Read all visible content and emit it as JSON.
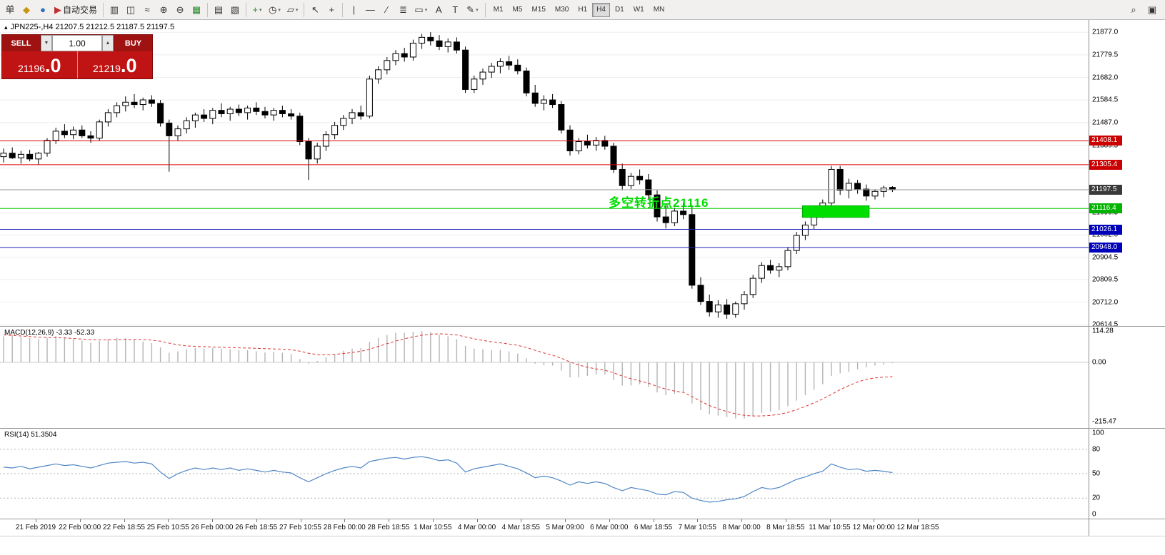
{
  "icons": {
    "symbol_arrow": "▴",
    "down_arrow": "▼",
    "up_arrow": "▲",
    "dropdown_arrow": "▾"
  },
  "toolbar": {
    "groups": [
      {
        "items": [
          {
            "name": "new-order-button",
            "glyph": "单"
          },
          {
            "name": "market-watch-icon-button",
            "glyph": "◆",
            "cls": "gold"
          },
          {
            "name": "community-icon-button",
            "glyph": "●",
            "cls": "blue"
          },
          {
            "name": "autotrade-button",
            "glyph": "▶",
            "cls": "red",
            "label": "自动交易"
          }
        ]
      },
      {
        "items": [
          {
            "name": "bar-chart-button",
            "glyph": "▥"
          },
          {
            "name": "candlestick-chart-button",
            "glyph": "◫"
          },
          {
            "name": "line-chart-button",
            "glyph": "≈"
          },
          {
            "name": "zoom-in-button",
            "glyph": "⊕"
          },
          {
            "name": "zoom-out-button",
            "glyph": "⊖"
          },
          {
            "name": "grid-button",
            "glyph": "▦",
            "cls": "green"
          }
        ]
      },
      {
        "items": [
          {
            "name": "tile-windows-button",
            "glyph": "▤"
          },
          {
            "name": "arrange-windows-button",
            "glyph": "▧"
          }
        ]
      },
      {
        "items": [
          {
            "name": "indicators-button",
            "glyph": "+",
            "cls": "green",
            "dropdown": true
          },
          {
            "name": "periods-button",
            "glyph": "◷",
            "dropdown": true
          },
          {
            "name": "templates-button",
            "glyph": "▱",
            "dropdown": true
          }
        ]
      },
      {
        "items": [
          {
            "name": "cursor-button",
            "glyph": "↖"
          },
          {
            "name": "crosshair-button",
            "glyph": "+"
          }
        ]
      },
      {
        "items": [
          {
            "name": "vertical-line-button",
            "glyph": "|"
          },
          {
            "name": "horizontal-line-button",
            "glyph": "—"
          },
          {
            "name": "trendline-button",
            "glyph": "∕"
          },
          {
            "name": "fibonacci-button",
            "glyph": "≣"
          },
          {
            "name": "shapes-button",
            "glyph": "▭",
            "dropdown": true
          },
          {
            "name": "text-button",
            "glyph": "A"
          },
          {
            "name": "label-button",
            "glyph": "T"
          },
          {
            "name": "arrows-button",
            "glyph": "✎",
            "dropdown": true
          }
        ]
      }
    ],
    "timeframes": [
      "M1",
      "M5",
      "M15",
      "M30",
      "H1",
      "H4",
      "D1",
      "W1",
      "MN"
    ],
    "active_timeframe": "H4",
    "right_items": [
      {
        "name": "search-icon-button",
        "glyph": "⌕"
      },
      {
        "name": "new-window-icon-button",
        "glyph": "▣"
      }
    ]
  },
  "symbol_header": {
    "text": "JPN225-,H4 21207.5 21212.5 21187.5 21197.5"
  },
  "trade_panel": {
    "sell_label": "SELL",
    "buy_label": "BUY",
    "lot": "1.00",
    "sell_price_main": "21196",
    "sell_price_frac": ".0",
    "buy_price_main": "21219",
    "buy_price_frac": ".0"
  },
  "annotation": {
    "text": "多空转折点21116",
    "color": "#00dd00"
  },
  "price_axis": {
    "labels": [
      "21877.0",
      "21779.5",
      "21682.0",
      "21584.5",
      "21487.0",
      "21389.5",
      "21292.0",
      "21194.5",
      "21099.5",
      "21002.0",
      "20904.5",
      "20809.5",
      "20712.0",
      "20614.5"
    ],
    "badges": [
      {
        "value": "21408.1",
        "color": "#cc0000"
      },
      {
        "value": "21305.4",
        "color": "#cc0000"
      },
      {
        "value": "21197.5",
        "color": "#3a3a3a"
      },
      {
        "value": "21116.4",
        "color": "#00b400"
      },
      {
        "value": "21026.1",
        "color": "#0000bb"
      },
      {
        "value": "20948.0",
        "color": "#0000bb"
      }
    ]
  },
  "macd": {
    "legend": "MACD(12,26,9) -3.33 -52.33",
    "axis": [
      "114.28",
      "0.00",
      "-215.47"
    ]
  },
  "rsi": {
    "legend": "RSI(14) 51.3504",
    "axis": [
      "100",
      "80",
      "50",
      "20",
      "0"
    ]
  },
  "chart_data": {
    "type": "candlestick",
    "symbol": "JPN225-",
    "timeframe": "H4",
    "main": {
      "price_range": [
        20609,
        21930
      ],
      "bid_line": {
        "price": 21197.5,
        "color": "#a8a8a8"
      },
      "hlines": [
        {
          "price": 21408.1,
          "color": "#dd0000"
        },
        {
          "price": 21305.4,
          "color": "#dd0000"
        },
        {
          "price": 21116.4,
          "color": "#00cc00"
        },
        {
          "price": 21026.1,
          "color": "#2020c0"
        },
        {
          "price": 20948.0,
          "color": "#2020c0"
        }
      ],
      "rect": {
        "i1": 92,
        "i2": 99,
        "p1": 21128,
        "p2": 21078,
        "color": "#00dd00"
      },
      "last_ohlc": {
        "open": 21207.5,
        "high": 21212.5,
        "low": 21187.5,
        "close": 21197.5
      },
      "ohlc": [
        [
          21340,
          21375,
          21315,
          21355
        ],
        [
          21355,
          21380,
          21330,
          21335
        ],
        [
          21335,
          21365,
          21310,
          21350
        ],
        [
          21350,
          21370,
          21320,
          21330
        ],
        [
          21330,
          21360,
          21305,
          21355
        ],
        [
          21355,
          21420,
          21340,
          21410
        ],
        [
          21410,
          21465,
          21395,
          21450
        ],
        [
          21450,
          21480,
          21420,
          21435
        ],
        [
          21435,
          21470,
          21415,
          21455
        ],
        [
          21455,
          21475,
          21420,
          21430
        ],
        [
          21430,
          21450,
          21400,
          21420
        ],
        [
          21420,
          21500,
          21410,
          21490
        ],
        [
          21490,
          21545,
          21470,
          21530
        ],
        [
          21530,
          21575,
          21510,
          21560
        ],
        [
          21560,
          21600,
          21535,
          21575
        ],
        [
          21575,
          21610,
          21550,
          21565
        ],
        [
          21565,
          21595,
          21540,
          21585
        ],
        [
          21585,
          21605,
          21555,
          21570
        ],
        [
          21570,
          21585,
          21470,
          21485
        ],
        [
          21485,
          21500,
          21275,
          21430
        ],
        [
          21430,
          21475,
          21410,
          21460
        ],
        [
          21460,
          21510,
          21440,
          21495
        ],
        [
          21495,
          21530,
          21465,
          21520
        ],
        [
          21520,
          21545,
          21490,
          21505
        ],
        [
          21505,
          21550,
          21480,
          21540
        ],
        [
          21540,
          21570,
          21510,
          21525
        ],
        [
          21525,
          21555,
          21495,
          21545
        ],
        [
          21545,
          21565,
          21515,
          21530
        ],
        [
          21530,
          21560,
          21500,
          21550
        ],
        [
          21550,
          21575,
          21520,
          21535
        ],
        [
          21535,
          21555,
          21505,
          21520
        ],
        [
          21520,
          21550,
          21495,
          21540
        ],
        [
          21540,
          21560,
          21510,
          21525
        ],
        [
          21525,
          21545,
          21500,
          21515
        ],
        [
          21515,
          21530,
          21390,
          21405
        ],
        [
          21405,
          21420,
          21240,
          21330
        ],
        [
          21330,
          21400,
          21310,
          21385
        ],
        [
          21385,
          21450,
          21365,
          21435
        ],
        [
          21435,
          21490,
          21415,
          21475
        ],
        [
          21475,
          21520,
          21455,
          21505
        ],
        [
          21505,
          21545,
          21480,
          21530
        ],
        [
          21530,
          21560,
          21500,
          21515
        ],
        [
          21515,
          21690,
          21505,
          21675
        ],
        [
          21675,
          21730,
          21655,
          21715
        ],
        [
          21715,
          21770,
          21695,
          21755
        ],
        [
          21755,
          21800,
          21735,
          21785
        ],
        [
          21785,
          21810,
          21750,
          21770
        ],
        [
          21770,
          21845,
          21755,
          21830
        ],
        [
          21830,
          21870,
          21805,
          21855
        ],
        [
          21855,
          21877,
          21820,
          21840
        ],
        [
          21840,
          21865,
          21800,
          21815
        ],
        [
          21815,
          21850,
          21790,
          21835
        ],
        [
          21835,
          21855,
          21785,
          21800
        ],
        [
          21800,
          21815,
          21615,
          21630
        ],
        [
          21630,
          21690,
          21615,
          21675
        ],
        [
          21675,
          21720,
          21650,
          21705
        ],
        [
          21705,
          21745,
          21680,
          21730
        ],
        [
          21730,
          21765,
          21700,
          21750
        ],
        [
          21750,
          21775,
          21715,
          21735
        ],
        [
          21735,
          21760,
          21695,
          21710
        ],
        [
          21710,
          21725,
          21600,
          21615
        ],
        [
          21615,
          21650,
          21555,
          21570
        ],
        [
          21570,
          21605,
          21540,
          21585
        ],
        [
          21585,
          21610,
          21550,
          21565
        ],
        [
          21565,
          21580,
          21440,
          21455
        ],
        [
          21455,
          21475,
          21345,
          21365
        ],
        [
          21365,
          21420,
          21350,
          21405
        ],
        [
          21405,
          21435,
          21375,
          21390
        ],
        [
          21390,
          21425,
          21365,
          21410
        ],
        [
          21410,
          21430,
          21370,
          21385
        ],
        [
          21385,
          21400,
          21270,
          21285
        ],
        [
          21285,
          21310,
          21195,
          21215
        ],
        [
          21215,
          21270,
          21200,
          21255
        ],
        [
          21255,
          21285,
          21220,
          21240
        ],
        [
          21240,
          21265,
          21155,
          21175
        ],
        [
          21175,
          21195,
          21060,
          21080
        ],
        [
          21080,
          21130,
          21030,
          21055
        ],
        [
          21055,
          21120,
          21040,
          21105
        ],
        [
          21105,
          21140,
          21070,
          21090
        ],
        [
          21090,
          21130,
          20770,
          20785
        ],
        [
          20785,
          20820,
          20700,
          20715
        ],
        [
          20715,
          20745,
          20650,
          20670
        ],
        [
          20670,
          20720,
          20645,
          20700
        ],
        [
          20700,
          20725,
          20640,
          20660
        ],
        [
          20660,
          20715,
          20645,
          20705
        ],
        [
          20705,
          20760,
          20680,
          20745
        ],
        [
          20745,
          20830,
          20730,
          20815
        ],
        [
          20815,
          20885,
          20795,
          20870
        ],
        [
          20870,
          20895,
          20835,
          20850
        ],
        [
          20850,
          20880,
          20820,
          20865
        ],
        [
          20865,
          20950,
          20850,
          20935
        ],
        [
          20935,
          21015,
          20920,
          21000
        ],
        [
          21000,
          21060,
          20980,
          21045
        ],
        [
          21045,
          21110,
          21025,
          21095
        ],
        [
          21095,
          21155,
          21075,
          21140
        ],
        [
          21140,
          21300,
          21125,
          21285
        ],
        [
          21285,
          21300,
          21175,
          21195
        ],
        [
          21195,
          21245,
          21160,
          21225
        ],
        [
          21225,
          21240,
          21180,
          21200
        ],
        [
          21200,
          21220,
          21150,
          21170
        ],
        [
          21170,
          21200,
          21155,
          21190
        ],
        [
          21190,
          21215,
          21165,
          21205
        ],
        [
          21207.5,
          21212.5,
          21187.5,
          21197.5
        ]
      ]
    },
    "macd": {
      "type": "histogram+line",
      "params": "12,26,9",
      "value": -3.33,
      "signal_value": -52.33,
      "range": [
        -240,
        130
      ],
      "histogram": [
        95,
        100,
        92,
        88,
        85,
        90,
        96,
        92,
        86,
        80,
        72,
        78,
        85,
        90,
        88,
        82,
        76,
        70,
        55,
        35,
        40,
        48,
        52,
        50,
        52,
        50,
        48,
        45,
        44,
        40,
        36,
        38,
        35,
        30,
        12,
        -5,
        5,
        18,
        30,
        42,
        50,
        52,
        75,
        90,
        100,
        108,
        108,
        112,
        114,
        110,
        100,
        95,
        85,
        60,
        50,
        48,
        46,
        45,
        40,
        32,
        15,
        -5,
        -10,
        -12,
        -30,
        -55,
        -55,
        -50,
        -45,
        -45,
        -65,
        -85,
        -85,
        -80,
        -90,
        -110,
        -120,
        -115,
        -110,
        -150,
        -175,
        -190,
        -195,
        -200,
        -205,
        -205,
        -195,
        -185,
        -180,
        -175,
        -160,
        -140,
        -120,
        -100,
        -80,
        -50,
        -40,
        -35,
        -25,
        -18,
        -12,
        -8,
        -3.33
      ],
      "signal": [
        100,
        98,
        96,
        94,
        92,
        91,
        90,
        89,
        87,
        85,
        83,
        82,
        82,
        83,
        84,
        84,
        83,
        81,
        77,
        70,
        64,
        60,
        58,
        57,
        56,
        55,
        54,
        53,
        52,
        51,
        50,
        49,
        48,
        46,
        41,
        33,
        28,
        27,
        29,
        32,
        36,
        40,
        48,
        58,
        68,
        78,
        86,
        93,
        99,
        103,
        104,
        103,
        100,
        93,
        86,
        80,
        75,
        71,
        67,
        62,
        54,
        44,
        34,
        26,
        15,
        1,
        -10,
        -18,
        -24,
        -29,
        -38,
        -50,
        -60,
        -68,
        -76,
        -88,
        -98,
        -105,
        -110,
        -125,
        -142,
        -158,
        -170,
        -180,
        -188,
        -194,
        -196,
        -196,
        -194,
        -190,
        -183,
        -173,
        -161,
        -148,
        -134,
        -117,
        -100,
        -85,
        -72,
        -62,
        -57,
        -54,
        -52.33
      ]
    },
    "rsi": {
      "type": "line",
      "period": 14,
      "value": 51.3504,
      "range": [
        0,
        100
      ],
      "levels": [
        80,
        50,
        20
      ],
      "values": [
        58,
        57,
        59,
        56,
        58,
        60,
        62,
        60,
        61,
        59,
        57,
        60,
        63,
        64,
        65,
        63,
        64,
        62,
        52,
        44,
        50,
        54,
        57,
        55,
        57,
        55,
        57,
        54,
        56,
        54,
        52,
        54,
        52,
        51,
        45,
        40,
        45,
        50,
        54,
        57,
        59,
        57,
        65,
        67,
        69,
        70,
        68,
        70,
        71,
        69,
        66,
        67,
        63,
        52,
        56,
        58,
        60,
        62,
        59,
        56,
        51,
        45,
        47,
        45,
        41,
        36,
        40,
        38,
        40,
        38,
        33,
        29,
        33,
        31,
        29,
        25,
        24,
        28,
        27,
        20,
        17,
        15,
        16,
        18,
        19,
        22,
        28,
        33,
        31,
        33,
        38,
        43,
        46,
        50,
        53,
        62,
        58,
        55,
        56,
        53,
        54,
        53,
        51.35
      ]
    },
    "time_labels": [
      "21 Feb 2019",
      "22 Feb 00:00",
      "22 Feb 18:55",
      "25 Feb 10:55",
      "26 Feb 00:00",
      "26 Feb 18:55",
      "27 Feb 10:55",
      "28 Feb 00:00",
      "28 Feb 18:55",
      "1 Mar 10:55",
      "4 Mar 00:00",
      "4 Mar 18:55",
      "5 Mar 09:00",
      "6 Mar 00:00",
      "6 Mar 18:55",
      "7 Mar 10:55",
      "8 Mar 00:00",
      "8 Mar 18:55",
      "11 Mar 10:55",
      "12 Mar 00:00",
      "12 Mar 18:55"
    ]
  }
}
